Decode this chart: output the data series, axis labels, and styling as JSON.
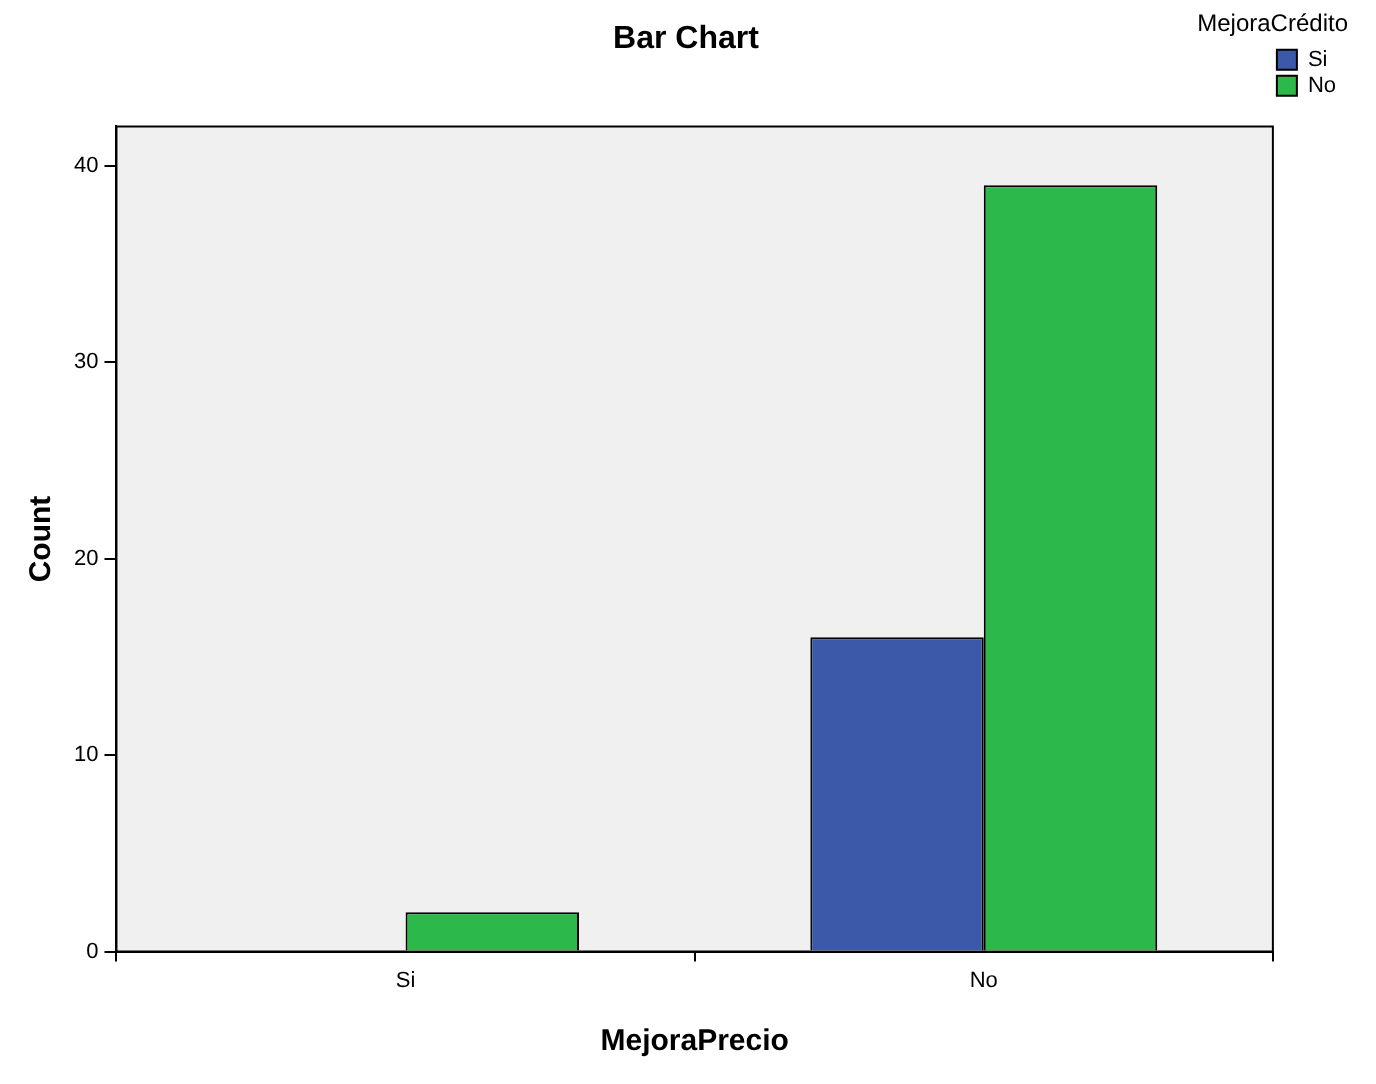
{
  "chart_data": {
    "type": "bar",
    "title": "Bar Chart",
    "xlabel": "MejoraPrecio",
    "ylabel": "Count",
    "legend_title": "MejoraCrédito",
    "categories": [
      "Si",
      "No"
    ],
    "series": [
      {
        "name": "Si",
        "color": "#3c58a8",
        "values": [
          0,
          16
        ]
      },
      {
        "name": "No",
        "color": "#2db84a",
        "values": [
          2,
          39
        ]
      }
    ],
    "ylim": [
      0,
      42
    ],
    "yticks": [
      0,
      10,
      20,
      30,
      40
    ],
    "grid": false,
    "legend": "top right"
  }
}
